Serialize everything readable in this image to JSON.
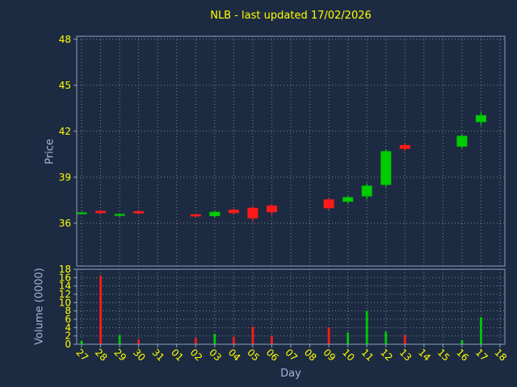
{
  "colors": {
    "background": "#1d2b42",
    "tick_text": "#ffff00",
    "axis_label": "#9fb6d8",
    "spine": "#8aa0c0",
    "grid": "#ffffff",
    "up": "#00cc00",
    "down": "#ff1a1a"
  },
  "chart_data": {
    "type": "candlestick_with_volume",
    "title": "NLB - last updated 17/02/2026",
    "xlabel": "Day",
    "ylabel_price": "Price",
    "ylabel_volume": "Volume (0000)",
    "categories": [
      "27",
      "28",
      "29",
      "30",
      "31",
      "01",
      "02",
      "03",
      "04",
      "05",
      "06",
      "07",
      "08",
      "09",
      "10",
      "11",
      "12",
      "13",
      "14",
      "15",
      "16",
      "17",
      "18"
    ],
    "price_ylim": [
      33.2,
      48.2
    ],
    "price_ticks": [
      36,
      39,
      42,
      45,
      48
    ],
    "volume_ylim": [
      0,
      18
    ],
    "volume_ticks": [
      0,
      2,
      4,
      6,
      8,
      10,
      12,
      14,
      16,
      18
    ],
    "grid": "dotted",
    "candles": [
      {
        "day": "27",
        "open": 36.68,
        "high": 36.74,
        "low": 36.62,
        "close": 36.7,
        "volume": 0.8
      },
      {
        "day": "28",
        "open": 36.8,
        "high": 36.84,
        "low": 36.6,
        "close": 36.66,
        "volume": 16.5
      },
      {
        "day": "29",
        "open": 36.52,
        "high": 36.64,
        "low": 36.42,
        "close": 36.6,
        "volume": 2.2
      },
      {
        "day": "30",
        "open": 36.78,
        "high": 36.88,
        "low": 36.56,
        "close": 36.64,
        "volume": 1.2
      },
      {
        "day": "02",
        "open": 36.58,
        "high": 36.62,
        "low": 36.38,
        "close": 36.44,
        "volume": 1.5
      },
      {
        "day": "03",
        "open": 36.46,
        "high": 36.8,
        "low": 36.4,
        "close": 36.74,
        "volume": 2.5
      },
      {
        "day": "04",
        "open": 36.88,
        "high": 36.94,
        "low": 36.58,
        "close": 36.66,
        "volume": 1.8
      },
      {
        "day": "05",
        "open": 37.0,
        "high": 37.12,
        "low": 36.1,
        "close": 36.32,
        "volume": 4.2
      },
      {
        "day": "06",
        "open": 37.15,
        "high": 37.28,
        "low": 36.5,
        "close": 36.72,
        "volume": 2.0
      },
      {
        "day": "09",
        "open": 37.55,
        "high": 37.62,
        "low": 36.85,
        "close": 36.98,
        "volume": 4.0
      },
      {
        "day": "10",
        "open": 37.4,
        "high": 37.76,
        "low": 37.3,
        "close": 37.7,
        "volume": 2.8
      },
      {
        "day": "11",
        "open": 37.75,
        "high": 38.6,
        "low": 37.55,
        "close": 38.45,
        "volume": 8.0
      },
      {
        "day": "12",
        "open": 38.5,
        "high": 40.82,
        "low": 38.35,
        "close": 40.7,
        "volume": 3.0
      },
      {
        "day": "13",
        "open": 41.1,
        "high": 41.2,
        "low": 40.7,
        "close": 40.85,
        "volume": 2.2
      },
      {
        "day": "16",
        "open": 41.0,
        "high": 41.8,
        "low": 40.88,
        "close": 41.7,
        "volume": 1.0
      },
      {
        "day": "17",
        "open": 42.6,
        "high": 43.25,
        "low": 42.38,
        "close": 43.05,
        "volume": 6.5
      }
    ]
  }
}
